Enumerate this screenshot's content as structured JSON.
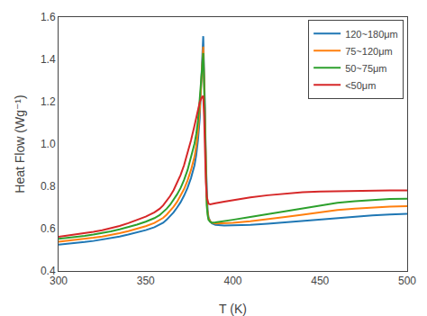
{
  "chart_data": {
    "type": "line",
    "xlabel": "T (K)",
    "ylabel": "Heat Flow (Wg⁻¹)",
    "x": [
      300,
      305,
      310,
      315,
      320,
      325,
      330,
      335,
      340,
      345,
      350,
      355,
      358,
      360,
      362,
      364,
      366,
      368,
      370,
      372,
      374,
      376,
      378,
      379,
      380,
      381,
      382,
      382.5,
      383,
      383.5,
      384,
      384.5,
      385,
      385.5,
      386,
      387,
      388,
      390,
      395,
      400,
      410,
      420,
      430,
      440,
      450,
      460,
      470,
      480,
      490,
      500
    ],
    "series": [
      {
        "name": "120~180μm",
        "values": [
          0.525,
          0.528,
          0.532,
          0.537,
          0.542,
          0.548,
          0.555,
          0.563,
          0.572,
          0.582,
          0.593,
          0.607,
          0.618,
          0.628,
          0.642,
          0.658,
          0.677,
          0.7,
          0.725,
          0.756,
          0.793,
          0.84,
          0.9,
          0.95,
          1.02,
          1.12,
          1.28,
          1.42,
          1.51,
          1.38,
          1.17,
          0.92,
          0.76,
          0.69,
          0.655,
          0.635,
          0.625,
          0.618,
          0.615,
          0.615,
          0.618,
          0.623,
          0.63,
          0.638,
          0.645,
          0.652,
          0.658,
          0.663,
          0.667,
          0.67
        ]
      },
      {
        "name": "75~120μm",
        "values": [
          0.538,
          0.542,
          0.546,
          0.551,
          0.557,
          0.563,
          0.57,
          0.579,
          0.588,
          0.599,
          0.612,
          0.627,
          0.64,
          0.651,
          0.666,
          0.684,
          0.704,
          0.727,
          0.754,
          0.787,
          0.828,
          0.878,
          0.94,
          0.99,
          1.06,
          1.16,
          1.31,
          1.4,
          1.46,
          1.31,
          1.1,
          0.88,
          0.735,
          0.68,
          0.65,
          0.635,
          0.628,
          0.625,
          0.625,
          0.628,
          0.635,
          0.644,
          0.655,
          0.666,
          0.678,
          0.688,
          0.695,
          0.7,
          0.704,
          0.706
        ]
      },
      {
        "name": "50~75μm",
        "values": [
          0.552,
          0.556,
          0.561,
          0.566,
          0.572,
          0.579,
          0.587,
          0.597,
          0.607,
          0.619,
          0.633,
          0.65,
          0.664,
          0.677,
          0.694,
          0.713,
          0.736,
          0.762,
          0.792,
          0.83,
          0.877,
          0.934,
          1.002,
          1.048,
          1.112,
          1.215,
          1.34,
          1.4,
          1.43,
          1.28,
          1.06,
          0.84,
          0.71,
          0.665,
          0.642,
          0.632,
          0.628,
          0.63,
          0.635,
          0.642,
          0.655,
          0.668,
          0.682,
          0.696,
          0.71,
          0.722,
          0.73,
          0.736,
          0.74,
          0.742
        ]
      },
      {
        "name": "<50μm",
        "values": [
          0.562,
          0.567,
          0.572,
          0.578,
          0.585,
          0.593,
          0.602,
          0.613,
          0.626,
          0.64,
          0.657,
          0.677,
          0.694,
          0.71,
          0.73,
          0.754,
          0.782,
          0.815,
          0.854,
          0.9,
          0.955,
          1.018,
          1.087,
          1.126,
          1.165,
          1.198,
          1.218,
          1.225,
          1.228,
          1.13,
          0.96,
          0.82,
          0.752,
          0.727,
          0.718,
          0.715,
          0.716,
          0.72,
          0.728,
          0.735,
          0.748,
          0.758,
          0.766,
          0.772,
          0.776,
          0.778,
          0.78,
          0.781,
          0.781,
          0.781
        ]
      }
    ],
    "xlim": [
      300,
      500
    ],
    "ylim": [
      0.4,
      1.6
    ],
    "xticks": [
      300,
      350,
      400,
      450,
      500
    ],
    "yticks": [
      0.4,
      0.6,
      0.8,
      {
        "value": 1.0,
        "label": "1.0"
      },
      1.2,
      1.4,
      1.6
    ],
    "grid": false,
    "legend": "upper right"
  }
}
